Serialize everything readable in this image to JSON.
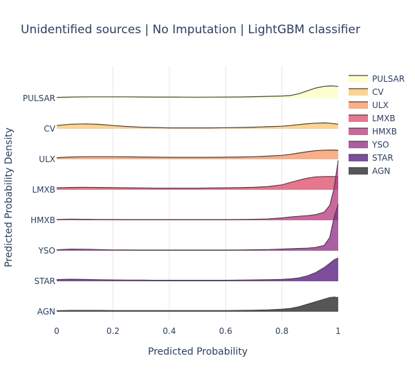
{
  "chart_data": {
    "type": "ridgeline",
    "title": "Unidentified sources | No Imputation | LightGBM classifier",
    "xlabel": "Predicted Probability",
    "ylabel": "Predicted Probability Density",
    "xlim": [
      0,
      1
    ],
    "x_ticks": [
      "0",
      "0.2",
      "0.4",
      "0.6",
      "0.8",
      "1"
    ],
    "grid": "vertical",
    "legend_position": "right",
    "x": [
      0,
      0.05,
      0.1,
      0.15,
      0.2,
      0.25,
      0.3,
      0.35,
      0.4,
      0.45,
      0.5,
      0.55,
      0.6,
      0.65,
      0.7,
      0.75,
      0.8,
      0.83,
      0.86,
      0.89,
      0.92,
      0.95,
      0.97,
      0.985,
      1.0
    ],
    "series": [
      {
        "name": "PULSAR",
        "color": "#fcfdbf",
        "density": [
          0.06,
          0.08,
          0.09,
          0.09,
          0.09,
          0.09,
          0.085,
          0.08,
          0.08,
          0.075,
          0.07,
          0.075,
          0.08,
          0.085,
          0.1,
          0.12,
          0.14,
          0.17,
          0.28,
          0.45,
          0.62,
          0.72,
          0.75,
          0.74,
          0.72
        ]
      },
      {
        "name": "CV",
        "color": "#fcc46b",
        "density": [
          0.2,
          0.28,
          0.3,
          0.27,
          0.2,
          0.14,
          0.1,
          0.08,
          0.06,
          0.06,
          0.06,
          0.06,
          0.07,
          0.08,
          0.1,
          0.13,
          0.16,
          0.2,
          0.26,
          0.31,
          0.34,
          0.36,
          0.34,
          0.31,
          0.28
        ]
      },
      {
        "name": "ULX",
        "color": "#f79460",
        "density": [
          0.1,
          0.14,
          0.16,
          0.16,
          0.16,
          0.15,
          0.14,
          0.13,
          0.12,
          0.12,
          0.12,
          0.12,
          0.13,
          0.14,
          0.16,
          0.19,
          0.24,
          0.3,
          0.38,
          0.46,
          0.52,
          0.55,
          0.56,
          0.56,
          0.54
        ]
      },
      {
        "name": "LMXB",
        "color": "#de4968",
        "density": [
          0.12,
          0.14,
          0.15,
          0.14,
          0.13,
          0.12,
          0.11,
          0.1,
          0.1,
          0.1,
          0.1,
          0.11,
          0.12,
          0.13,
          0.15,
          0.19,
          0.3,
          0.44,
          0.58,
          0.7,
          0.78,
          0.8,
          0.8,
          0.8,
          0.8
        ]
      },
      {
        "name": "HMXB",
        "color": "#b73779",
        "density": [
          0.05,
          0.07,
          0.06,
          0.05,
          0.05,
          0.04,
          0.04,
          0.04,
          0.04,
          0.04,
          0.04,
          0.04,
          0.04,
          0.05,
          0.06,
          0.08,
          0.14,
          0.2,
          0.24,
          0.28,
          0.34,
          0.48,
          0.9,
          1.9,
          3.6
        ]
      },
      {
        "name": "YSO",
        "color": "#8c2981",
        "density": [
          0.06,
          0.1,
          0.09,
          0.07,
          0.05,
          0.05,
          0.04,
          0.04,
          0.04,
          0.04,
          0.04,
          0.04,
          0.04,
          0.05,
          0.06,
          0.07,
          0.1,
          0.12,
          0.14,
          0.16,
          0.2,
          0.32,
          0.8,
          2.0,
          2.8
        ]
      },
      {
        "name": "STAR",
        "color": "#51127c",
        "density": [
          0.1,
          0.12,
          0.11,
          0.09,
          0.08,
          0.07,
          0.07,
          0.06,
          0.06,
          0.06,
          0.06,
          0.06,
          0.06,
          0.07,
          0.08,
          0.09,
          0.11,
          0.14,
          0.2,
          0.32,
          0.52,
          0.82,
          1.08,
          1.28,
          1.4
        ]
      },
      {
        "name": "AGN",
        "color": "#1e1e1e",
        "density": [
          0.06,
          0.08,
          0.08,
          0.08,
          0.07,
          0.07,
          0.07,
          0.07,
          0.07,
          0.07,
          0.07,
          0.07,
          0.07,
          0.08,
          0.09,
          0.11,
          0.15,
          0.2,
          0.3,
          0.45,
          0.6,
          0.75,
          0.85,
          0.88,
          0.85
        ]
      }
    ]
  }
}
